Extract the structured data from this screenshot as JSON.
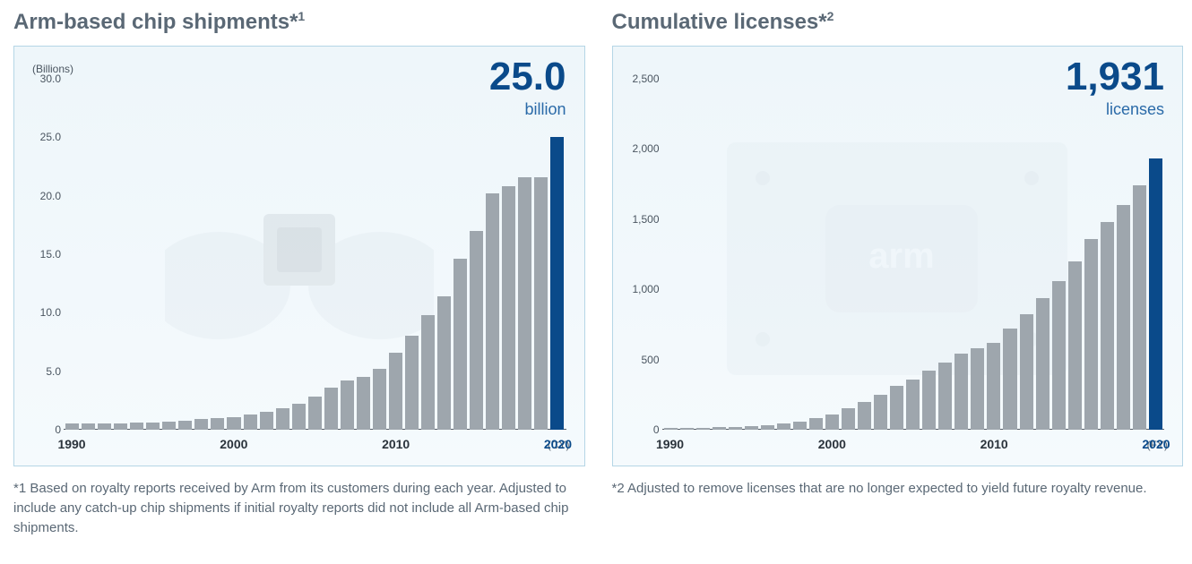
{
  "left_chart": {
    "title": "Arm-based chip shipments*",
    "title_sup": "1",
    "type": "bar",
    "y_unit": "(Billions)",
    "highlight_value": "25.0",
    "highlight_unit": "billion",
    "x_labels": [
      "1990",
      "2000",
      "2010",
      "2020"
    ],
    "x_suffix": "(CY)",
    "y_ticks": [
      "0",
      "5.0",
      "10.0",
      "15.0",
      "20.0",
      "25.0",
      "30.0"
    ],
    "y_max": 30.0,
    "bar_color": "#9ea6ad",
    "highlight_bar_color": "#0a4a8a",
    "frame_border_color": "#b5d6e6",
    "values": [
      0.5,
      0.5,
      0.5,
      0.5,
      0.6,
      0.6,
      0.7,
      0.8,
      0.9,
      1.0,
      1.1,
      1.3,
      1.5,
      1.8,
      2.2,
      2.8,
      3.6,
      4.2,
      4.5,
      5.2,
      6.6,
      8.0,
      9.8,
      11.4,
      14.6,
      17.0,
      20.2,
      20.8,
      21.6,
      21.6,
      25.0
    ]
  },
  "right_chart": {
    "title": "Cumulative licenses*",
    "title_sup": "2",
    "type": "bar",
    "y_unit": "",
    "highlight_value": "1,931",
    "highlight_unit": "licenses",
    "x_labels": [
      "1990",
      "2000",
      "2010",
      "2020"
    ],
    "x_suffix": "(FY)",
    "y_ticks": [
      "0",
      "500",
      "1,000",
      "1,500",
      "2,000",
      "2,500"
    ],
    "y_max": 2500,
    "bar_color": "#9ea6ad",
    "highlight_bar_color": "#0a4a8a",
    "frame_border_color": "#b5d6e6",
    "values": [
      10,
      12,
      15,
      18,
      22,
      28,
      35,
      45,
      60,
      80,
      110,
      150,
      200,
      250,
      310,
      360,
      420,
      480,
      540,
      580,
      620,
      720,
      820,
      940,
      1060,
      1200,
      1360,
      1480,
      1600,
      1740,
      1931
    ]
  },
  "footnote_left": "*1 Based on royalty reports received by Arm from its customers during each year. Adjusted to include any catch-up chip shipments if initial royalty reports did not include all Arm-based chip shipments.",
  "footnote_right": "*2 Adjusted to remove licenses that are no longer expected to yield future royalty revenue.",
  "colors": {
    "title_text": "#5a6875",
    "axis_text": "#4a5560",
    "highlight_text": "#0a4a8a"
  }
}
